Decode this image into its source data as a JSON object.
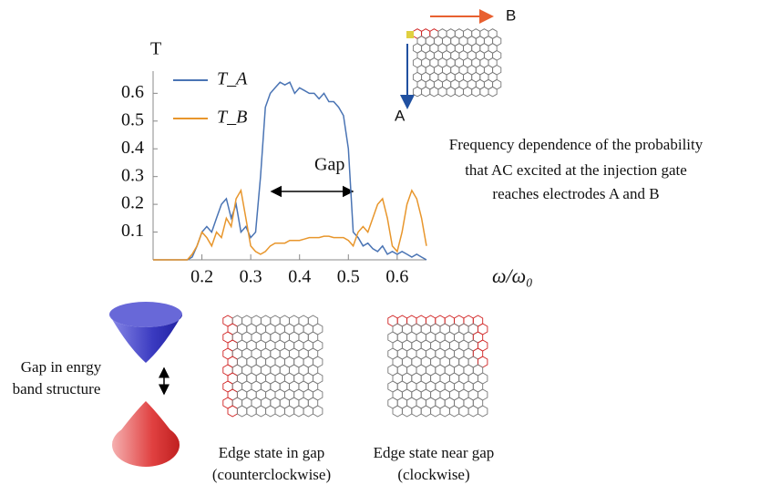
{
  "chart_data": {
    "type": "line",
    "y_label": "T",
    "x_label": "ω/ω₀",
    "x": [
      0.1,
      0.11,
      0.12,
      0.13,
      0.14,
      0.15,
      0.16,
      0.17,
      0.18,
      0.19,
      0.2,
      0.21,
      0.22,
      0.23,
      0.24,
      0.25,
      0.26,
      0.27,
      0.28,
      0.29,
      0.3,
      0.31,
      0.32,
      0.33,
      0.34,
      0.35,
      0.36,
      0.37,
      0.38,
      0.39,
      0.4,
      0.41,
      0.42,
      0.43,
      0.44,
      0.45,
      0.46,
      0.47,
      0.48,
      0.49,
      0.5,
      0.51,
      0.52,
      0.53,
      0.54,
      0.55,
      0.56,
      0.57,
      0.58,
      0.59,
      0.6,
      0.61,
      0.62,
      0.63,
      0.64,
      0.65,
      0.66
    ],
    "series": [
      {
        "name": "T_A",
        "color": "#4a74b4",
        "values": [
          0,
          0,
          0,
          0,
          0,
          0,
          0,
          0,
          0.01,
          0.05,
          0.1,
          0.12,
          0.1,
          0.15,
          0.2,
          0.22,
          0.15,
          0.2,
          0.1,
          0.12,
          0.08,
          0.1,
          0.3,
          0.55,
          0.6,
          0.62,
          0.64,
          0.63,
          0.64,
          0.6,
          0.62,
          0.61,
          0.6,
          0.6,
          0.58,
          0.6,
          0.57,
          0.57,
          0.55,
          0.52,
          0.4,
          0.1,
          0.08,
          0.05,
          0.06,
          0.04,
          0.03,
          0.05,
          0.02,
          0.03,
          0.02,
          0.03,
          0.02,
          0.01,
          0.02,
          0.01,
          0
        ]
      },
      {
        "name": "T_B",
        "color": "#e8962c",
        "values": [
          0,
          0,
          0,
          0,
          0,
          0,
          0,
          0,
          0.02,
          0.05,
          0.1,
          0.08,
          0.05,
          0.1,
          0.08,
          0.15,
          0.12,
          0.22,
          0.25,
          0.15,
          0.05,
          0.03,
          0.02,
          0.03,
          0.05,
          0.06,
          0.06,
          0.06,
          0.07,
          0.07,
          0.07,
          0.075,
          0.08,
          0.08,
          0.08,
          0.085,
          0.085,
          0.08,
          0.08,
          0.08,
          0.07,
          0.05,
          0.1,
          0.12,
          0.1,
          0.15,
          0.2,
          0.22,
          0.15,
          0.05,
          0.03,
          0.1,
          0.2,
          0.25,
          0.22,
          0.15,
          0.05
        ]
      }
    ],
    "xlim": [
      0.1,
      0.66
    ],
    "ylim": [
      0,
      0.68
    ],
    "xticks": [
      0.2,
      0.3,
      0.4,
      0.5,
      0.6
    ],
    "yticks": [
      0.1,
      0.2,
      0.3,
      0.4,
      0.5,
      0.6
    ],
    "annotations": [
      "Gap",
      "Frequency dependence of the probability",
      "that AC excited at the injection gate",
      "reaches electrodes A and B"
    ]
  },
  "diagram": {
    "inset_labels": [
      "A",
      "B"
    ],
    "band_label": [
      "Gap in enrgy",
      "band structure"
    ],
    "caption_left": [
      "Edge state in gap",
      "(counterclockwise)"
    ],
    "caption_right": [
      "Edge state near gap",
      "(clockwise)"
    ]
  }
}
